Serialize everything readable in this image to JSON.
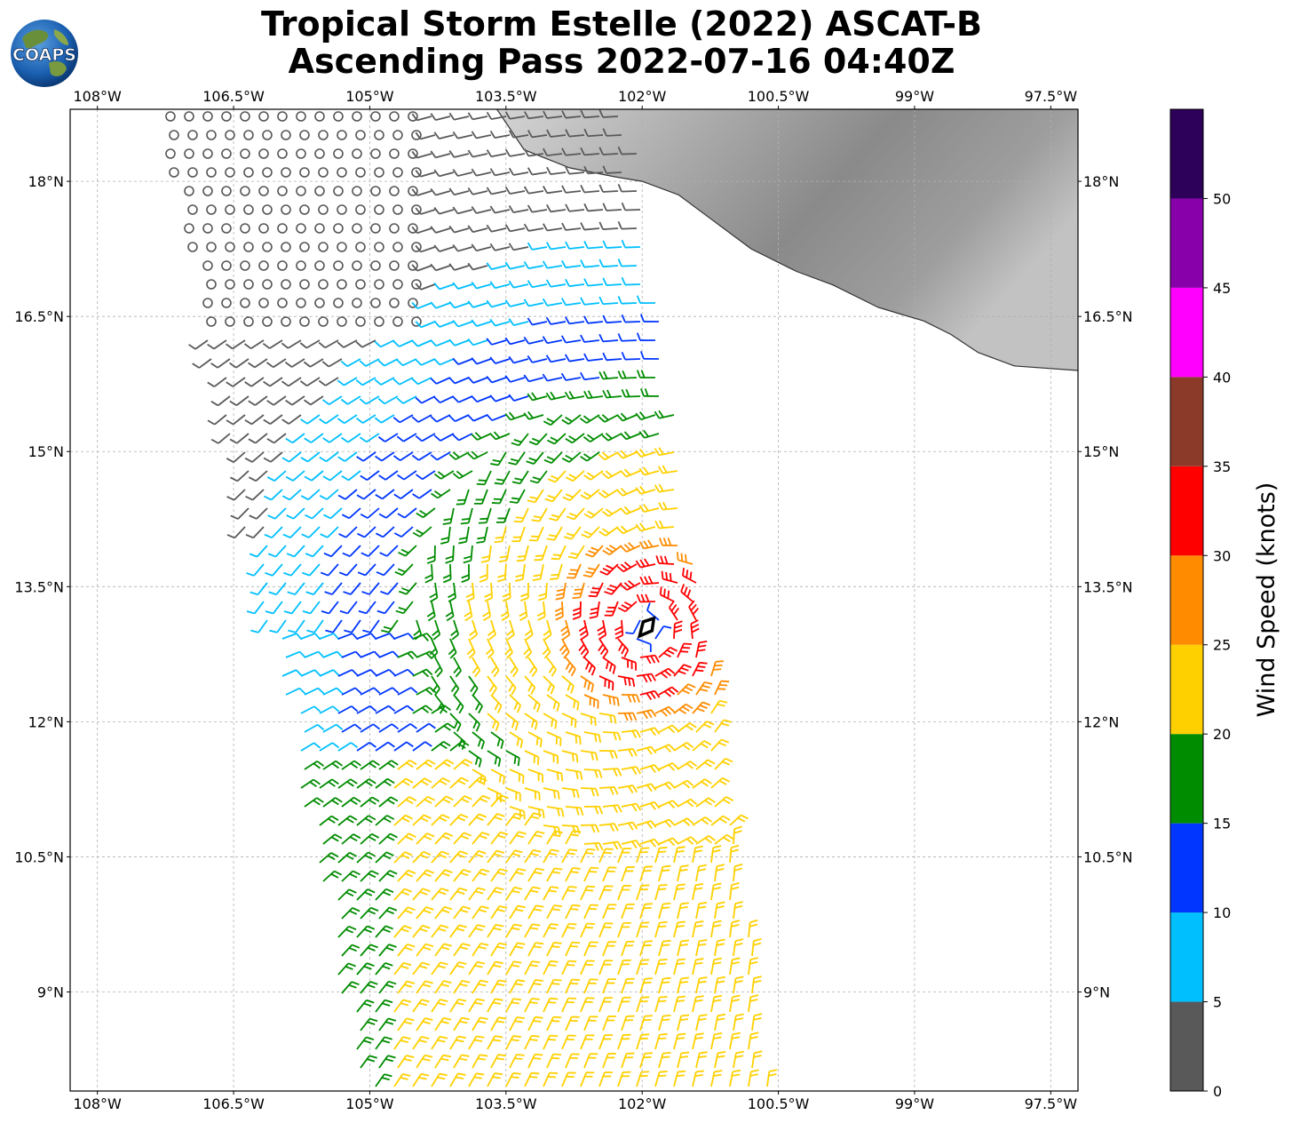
{
  "title": {
    "line1": "Tropical Storm Estelle (2022) ASCAT-B",
    "line2": "Ascending Pass 2022-07-16 04:40Z"
  },
  "logo": {
    "text": "COAPS",
    "icon": "globe-logo-icon"
  },
  "map": {
    "lon_range": [
      -108.3,
      -97.2
    ],
    "lat_range": [
      7.9,
      18.8
    ],
    "lon_ticks": [
      "108°W",
      "106.5°W",
      "105°W",
      "103.5°W",
      "102°W",
      "100.5°W",
      "99°W",
      "97.5°W"
    ],
    "lon_tick_values": [
      -108,
      -106.5,
      -105,
      -103.5,
      -102,
      -100.5,
      -99,
      -97.5
    ],
    "lat_ticks": [
      "18°N",
      "16.5°N",
      "15°N",
      "13.5°N",
      "12°N",
      "10.5°N",
      "9°N"
    ],
    "lat_tick_values": [
      18,
      16.5,
      15,
      13.5,
      12,
      10.5,
      9
    ],
    "grid": true,
    "storm_center": {
      "lon": -101.95,
      "lat": 13.05,
      "icon": "storm-center-symbol-icon"
    },
    "coastline": [
      [
        -103.6,
        18.8
      ],
      [
        -103.3,
        18.35
      ],
      [
        -102.8,
        18.15
      ],
      [
        -102.3,
        18.05
      ],
      [
        -102.0,
        18.0
      ],
      [
        -101.6,
        17.85
      ],
      [
        -101.2,
        17.55
      ],
      [
        -100.8,
        17.25
      ],
      [
        -100.3,
        17.0
      ],
      [
        -99.9,
        16.85
      ],
      [
        -99.4,
        16.6
      ],
      [
        -98.9,
        16.45
      ],
      [
        -98.6,
        16.3
      ],
      [
        -98.3,
        16.1
      ],
      [
        -97.9,
        15.95
      ],
      [
        -97.2,
        15.9
      ]
    ]
  },
  "colorbar": {
    "label": "Wind Speed (knots)",
    "ticks": [
      "0",
      "5",
      "10",
      "15",
      "20",
      "25",
      "30",
      "35",
      "40",
      "45",
      "50"
    ],
    "tick_values": [
      0,
      5,
      10,
      15,
      20,
      25,
      30,
      35,
      40,
      45,
      50
    ],
    "max": 55,
    "bands": [
      {
        "from": 0,
        "to": 5,
        "color": "#595959"
      },
      {
        "from": 5,
        "to": 10,
        "color": "#00bfff"
      },
      {
        "from": 10,
        "to": 15,
        "color": "#0036ff"
      },
      {
        "from": 15,
        "to": 20,
        "color": "#008c00"
      },
      {
        "from": 20,
        "to": 25,
        "color": "#ffd000"
      },
      {
        "from": 25,
        "to": 30,
        "color": "#ff8c00"
      },
      {
        "from": 30,
        "to": 35,
        "color": "#ff0000"
      },
      {
        "from": 35,
        "to": 40,
        "color": "#8b3a2a"
      },
      {
        "from": 40,
        "to": 45,
        "color": "#ff00ff"
      },
      {
        "from": 45,
        "to": 50,
        "color": "#8800aa"
      },
      {
        "from": 50,
        "to": 55,
        "color": "#2d005a"
      }
    ]
  }
}
